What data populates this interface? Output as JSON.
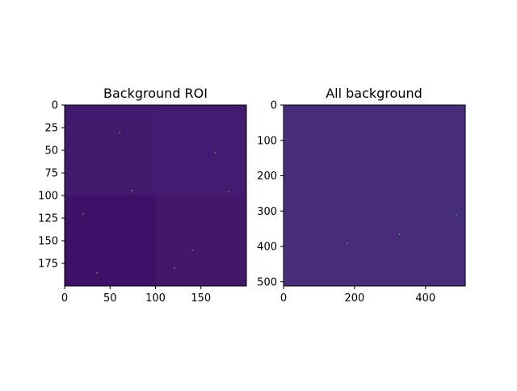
{
  "chart_data": [
    {
      "type": "heatmap",
      "title": "Background ROI",
      "xlabel": "",
      "ylabel": "",
      "xlim": [
        0,
        200
      ],
      "ylim": [
        200,
        0
      ],
      "xticks": [
        "0",
        "50",
        "100",
        "150"
      ],
      "yticks": [
        "0",
        "25",
        "50",
        "75",
        "100",
        "125",
        "150",
        "175"
      ],
      "colormap": "viridis",
      "quadrant_colors": {
        "top_left": "#431b6e",
        "top_right": "#431b70",
        "bottom_left": "#3f1067",
        "bottom_right": "#43186b"
      },
      "hot_pixels": [
        [
          74,
          94
        ],
        [
          20,
          120
        ],
        [
          140,
          160
        ],
        [
          60,
          30
        ],
        [
          165,
          52
        ],
        [
          120,
          180
        ],
        [
          35,
          185
        ],
        [
          180,
          95
        ]
      ]
    },
    {
      "type": "heatmap",
      "title": "All background",
      "xlabel": "",
      "ylabel": "",
      "xlim": [
        0,
        512
      ],
      "ylim": [
        512,
        0
      ],
      "xticks": [
        "0",
        "200",
        "400"
      ],
      "yticks": [
        "0",
        "100",
        "200",
        "300",
        "400",
        "500"
      ],
      "colormap": "viridis",
      "base_color": "#472c7a",
      "hot_pixels": [
        [
          485,
          310
        ],
        [
          325,
          365
        ],
        [
          178,
          390
        ]
      ]
    }
  ]
}
